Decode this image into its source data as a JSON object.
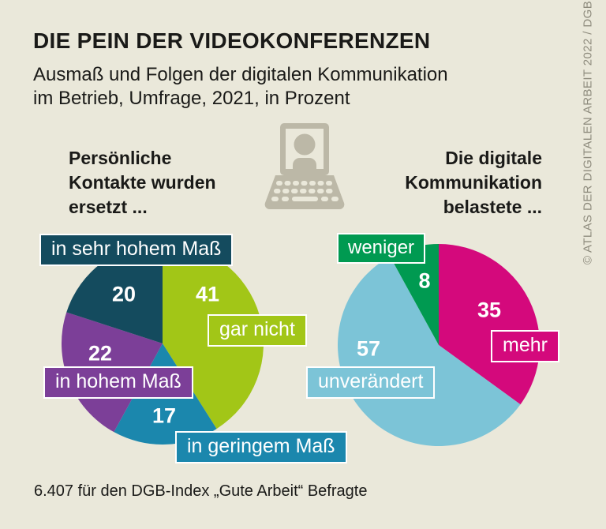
{
  "header": {
    "title": "DIE PEIN DER VIDEOKONFERENZEN",
    "subtitle_line1": "Ausmaß und Folgen der digitalen Kommunikation",
    "subtitle_line2": "im Betrieb, Umfrage, 2021, in Prozent"
  },
  "left_heading": {
    "line1": "Persönliche",
    "line2": "Kontakte wurden",
    "line3": "ersetzt ..."
  },
  "right_heading": {
    "line1": "Die digitale",
    "line2": "Kommunikation",
    "line3": "belastete ..."
  },
  "footnote": "6.407 für den DGB-Index „Gute Arbeit“ Befragte",
  "credit": "© ATLAS DER DIGITALEN ARBEIT 2022 / DGB",
  "colors": {
    "background": "#eae8da",
    "ink": "#1a1a18",
    "credit_gray": "#8e8b7d",
    "laptop_gray": "#bcb8a7",
    "white": "#ffffff"
  },
  "chart_data": [
    {
      "type": "pie",
      "title": "Persönliche Kontakte wurden ersetzt ...",
      "unit": "Prozent",
      "start": "top",
      "direction": "clockwise",
      "slices": [
        {
          "label": "gar nicht",
          "value": 41,
          "color": "#a2c617"
        },
        {
          "label": "in geringem Maß",
          "value": 17,
          "color": "#1b87ad"
        },
        {
          "label": "in hohem Maß",
          "value": 22,
          "color": "#7c3f98"
        },
        {
          "label": "in sehr hohem Maß",
          "value": 20,
          "color": "#144b5e"
        }
      ]
    },
    {
      "type": "pie",
      "title": "Die digitale Kommunikation belastete ...",
      "unit": "Prozent",
      "start": "top",
      "direction": "clockwise",
      "slices": [
        {
          "label": "mehr",
          "value": 35,
          "color": "#d4097c"
        },
        {
          "label": "unverändert",
          "value": 57,
          "color": "#7cc4d7"
        },
        {
          "label": "weniger",
          "value": 8,
          "color": "#009a51"
        }
      ]
    }
  ]
}
